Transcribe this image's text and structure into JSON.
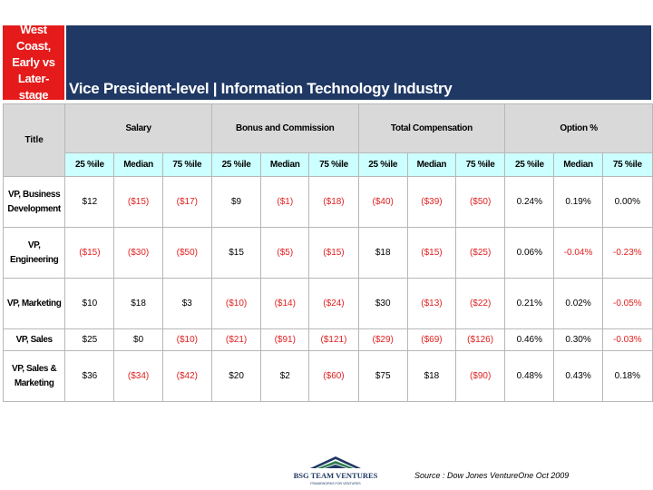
{
  "region_tag": [
    "West Coast,",
    "Early vs Later-",
    "stage"
  ],
  "banner_title": "Vice President-level  |  Information Technology Industry",
  "header": {
    "title_label": "Title",
    "groups": [
      "Salary",
      "Bonus and Commission",
      "Total Compensation",
      "Option %"
    ],
    "subcolumns": [
      "25 %ile",
      "Median",
      "75 %ile"
    ]
  },
  "rows": [
    {
      "title": "VP, Business Development",
      "values": [
        "$12",
        "($15)",
        "($17)",
        "$9",
        "($1)",
        "($18)",
        "($40)",
        "($39)",
        "($50)",
        "0.24%",
        "0.19%",
        "0.00%"
      ],
      "negative": [
        false,
        true,
        true,
        false,
        true,
        true,
        true,
        true,
        true,
        false,
        false,
        false
      ]
    },
    {
      "title": "VP, Engineering",
      "values": [
        "($15)",
        "($30)",
        "($50)",
        "$15",
        "($5)",
        "($15)",
        "$18",
        "($15)",
        "($25)",
        "0.06%",
        "-0.04%",
        "-0.23%"
      ],
      "negative": [
        true,
        true,
        true,
        false,
        true,
        true,
        false,
        true,
        true,
        false,
        true,
        true
      ]
    },
    {
      "title": "VP, Marketing",
      "values": [
        "$10",
        "$18",
        "$3",
        "($10)",
        "($14)",
        "($24)",
        "$30",
        "($13)",
        "($22)",
        "0.21%",
        "0.02%",
        "-0.05%"
      ],
      "negative": [
        false,
        false,
        false,
        true,
        true,
        true,
        false,
        true,
        true,
        false,
        false,
        true
      ]
    },
    {
      "title": "VP, Sales",
      "values": [
        "$25",
        "$0",
        "($10)",
        "($21)",
        "($91)",
        "($121)",
        "($29)",
        "($69)",
        "($126)",
        "0.46%",
        "0.30%",
        "-0.03%"
      ],
      "negative": [
        false,
        false,
        true,
        true,
        true,
        true,
        true,
        true,
        true,
        false,
        false,
        true
      ]
    },
    {
      "title": "VP, Sales & Marketing",
      "values": [
        "$36",
        "($34)",
        "($42)",
        "$20",
        "$2",
        "($60)",
        "$75",
        "$18",
        "($90)",
        "0.48%",
        "0.43%",
        "0.18%"
      ],
      "negative": [
        false,
        true,
        true,
        false,
        false,
        true,
        false,
        false,
        true,
        false,
        false,
        false
      ]
    }
  ],
  "logo": {
    "name": "BSG TEAM VENTURES",
    "tagline": "FRAMEWORKS FOR VENTURES",
    "colors": [
      "#1f3864",
      "#2e7d4f"
    ]
  },
  "source": "Source :  Dow Jones VentureOne  Oct 2009",
  "colors": {
    "banner": "#1f3864",
    "region_tag": "#e51b1b",
    "header_gray": "#d9d9d9",
    "subheader_cyan": "#ccffff",
    "negative": "#e02020"
  }
}
